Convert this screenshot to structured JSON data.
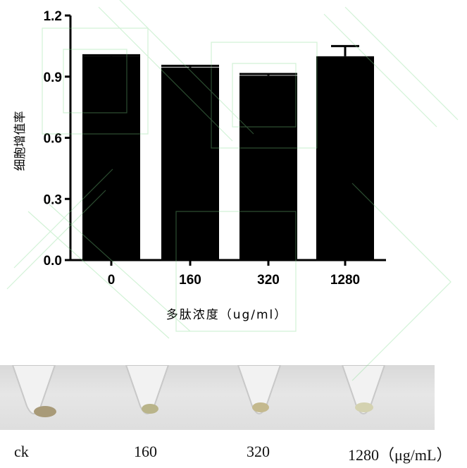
{
  "chart_data": {
    "type": "bar",
    "categories": [
      "0",
      "160",
      "320",
      "1280"
    ],
    "values": [
      1.0,
      0.945,
      0.905,
      1.0
    ],
    "errors": [
      0.005,
      0.008,
      0.008,
      0.05
    ],
    "ylabel": "细胞增值率",
    "xlabel": "多肽浓度（ug/ml）",
    "ylim": [
      0,
      1.2
    ],
    "yticks": [
      "0.0",
      "0.3",
      "0.6",
      "0.9",
      "1.2"
    ],
    "bar_color": "#000000",
    "grid": false
  },
  "photo": {
    "labels": [
      "ck",
      "160",
      "320",
      "1280（μg/mL）"
    ],
    "pellet_colors": [
      "#a89a78",
      "#b9b48a",
      "#c4b98e",
      "#d4d2b0"
    ]
  }
}
